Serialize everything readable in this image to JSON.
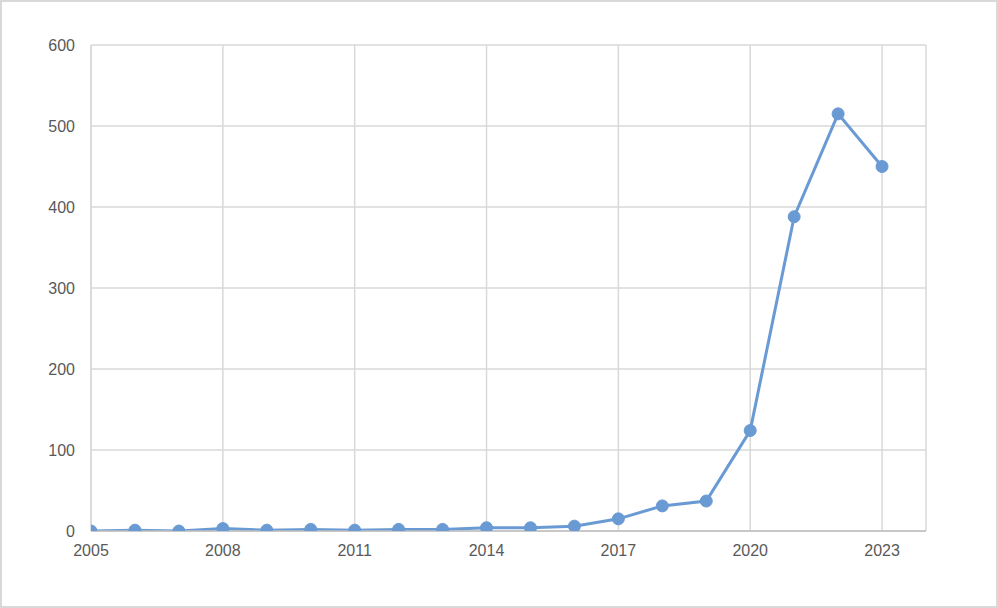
{
  "chart_data": {
    "type": "line",
    "x": [
      2005,
      2006,
      2007,
      2008,
      2009,
      2010,
      2011,
      2012,
      2013,
      2014,
      2015,
      2016,
      2017,
      2018,
      2019,
      2020,
      2021,
      2022,
      2023
    ],
    "values": [
      0,
      1,
      0,
      3,
      1,
      2,
      1,
      2,
      2,
      4,
      4,
      6,
      15,
      31,
      37,
      124,
      388,
      515,
      450
    ],
    "color": "#6a9ad4",
    "marker": "circle",
    "xlim": [
      2005,
      2024
    ],
    "xticks": [
      2005,
      2008,
      2011,
      2014,
      2017,
      2020,
      2023
    ],
    "ylim": [
      0,
      600
    ],
    "yticks": [
      0,
      100,
      200,
      300,
      400,
      500,
      600
    ],
    "grid": true
  }
}
